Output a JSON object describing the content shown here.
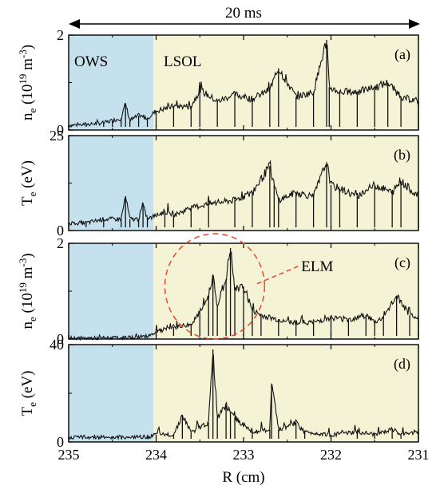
{
  "figure": {
    "span_label": "20 ms",
    "region_labels": {
      "left": "OWS",
      "right": "LSOL"
    },
    "annotation": "ELM",
    "xlabel": "R (cm)",
    "colors": {
      "ows_region": "#c5e1ee",
      "lsol_region": "#f5f3d5",
      "trace": "#111111",
      "elm_annotation": "#e8472a"
    }
  },
  "chart_data": {
    "type": "line",
    "x_range": [
      235,
      231
    ],
    "x_ticks": [
      "235",
      "234",
      "233",
      "232",
      "231"
    ],
    "regions": [
      {
        "name": "OWS",
        "R_from": 235,
        "R_to": 234.03
      },
      {
        "name": "LSOL",
        "R_from": 234.03,
        "R_to": 231
      }
    ],
    "elm_circle": {
      "R_center": 233.33,
      "y_center": 1.1,
      "R_halfwidth": 0.57,
      "y_halfheight": 1.1,
      "panel": "c"
    },
    "panels": [
      {
        "id": "a",
        "tag": "(a)",
        "ylabel": "n_e (10^19 m^-3)",
        "ylabel_parts": [
          "n",
          "e",
          " (10",
          "19",
          " m",
          "-3",
          ")"
        ],
        "ylim": [
          0,
          2
        ],
        "yticks": [
          "0",
          "2"
        ],
        "series": {
          "R": [
            235.0,
            234.8,
            234.6,
            234.5,
            234.4,
            234.35,
            234.3,
            234.2,
            234.1,
            234.0,
            233.8,
            233.6,
            233.5,
            233.3,
            233.1,
            232.9,
            232.7,
            232.6,
            232.4,
            232.2,
            232.05,
            232.02,
            231.9,
            231.7,
            231.5,
            231.35,
            231.2,
            231.0
          ],
          "val": [
            0.1,
            0.12,
            0.15,
            0.2,
            0.25,
            0.55,
            0.2,
            0.3,
            0.25,
            0.4,
            0.5,
            0.5,
            0.85,
            0.6,
            0.75,
            0.65,
            0.85,
            1.3,
            0.7,
            0.8,
            1.9,
            0.9,
            0.8,
            0.8,
            0.9,
            1.0,
            0.7,
            0.6
          ]
        }
      },
      {
        "id": "b",
        "tag": "(b)",
        "ylabel": "T_e (eV)",
        "ylabel_parts": [
          "T",
          "e",
          " (eV)",
          "",
          "",
          "",
          ""
        ],
        "ylim": [
          0,
          25
        ],
        "yticks": [
          "0",
          "25"
        ],
        "series": {
          "R": [
            235.0,
            234.8,
            234.6,
            234.4,
            234.35,
            234.3,
            234.2,
            234.15,
            234.1,
            233.9,
            233.8,
            233.6,
            233.4,
            233.1,
            232.9,
            232.7,
            232.65,
            232.6,
            232.4,
            232.2,
            232.05,
            232.0,
            231.9,
            231.7,
            231.5,
            231.3,
            231.2,
            231.0
          ],
          "val": [
            2,
            2,
            3,
            3,
            9,
            3,
            3,
            7,
            3,
            5,
            4,
            6,
            7,
            8,
            10,
            17,
            12,
            8,
            10,
            9,
            18,
            12,
            11,
            9,
            12,
            10,
            13,
            9
          ]
        }
      },
      {
        "id": "c",
        "tag": "(c)",
        "ylabel": "n_e (10^19 m^-3)",
        "ylabel_parts": [
          "n",
          "e",
          " (10",
          "19",
          " m",
          "-3",
          ")"
        ],
        "ylim": [
          0,
          2
        ],
        "yticks": [
          "0",
          "2"
        ],
        "series": {
          "R": [
            235.0,
            234.6,
            234.3,
            234.1,
            234.0,
            233.8,
            233.6,
            233.5,
            233.4,
            233.35,
            233.3,
            233.2,
            233.15,
            233.1,
            233.0,
            232.9,
            232.8,
            232.6,
            232.4,
            232.2,
            232.0,
            231.8,
            231.6,
            231.5,
            231.4,
            231.25,
            231.1,
            231.0
          ],
          "val": [
            0.02,
            0.02,
            0.03,
            0.06,
            0.15,
            0.25,
            0.3,
            0.55,
            0.9,
            1.35,
            0.7,
            1.25,
            1.9,
            1.0,
            1.1,
            0.6,
            0.5,
            0.4,
            0.35,
            0.35,
            0.45,
            0.4,
            0.5,
            0.35,
            0.45,
            0.9,
            0.5,
            0.4
          ]
        }
      },
      {
        "id": "d",
        "tag": "(d)",
        "ylabel": "T_e (eV)",
        "ylabel_parts": [
          "T",
          "e",
          " (eV)",
          "",
          "",
          "",
          ""
        ],
        "ylim": [
          0,
          40
        ],
        "yticks": [
          "0",
          "40"
        ],
        "series": {
          "R": [
            235.0,
            234.5,
            234.1,
            234.0,
            233.8,
            233.7,
            233.6,
            233.4,
            233.35,
            233.3,
            233.2,
            233.15,
            233.1,
            232.9,
            232.7,
            232.68,
            232.6,
            232.4,
            232.3,
            232.0,
            231.7,
            231.5,
            231.3,
            231.2,
            231.0
          ],
          "val": [
            2,
            2,
            2,
            3,
            3,
            11,
            4,
            8,
            38,
            10,
            15,
            12,
            10,
            4,
            5,
            24,
            5,
            8,
            4,
            3,
            4,
            3,
            5,
            3,
            4
          ]
        }
      }
    ]
  }
}
